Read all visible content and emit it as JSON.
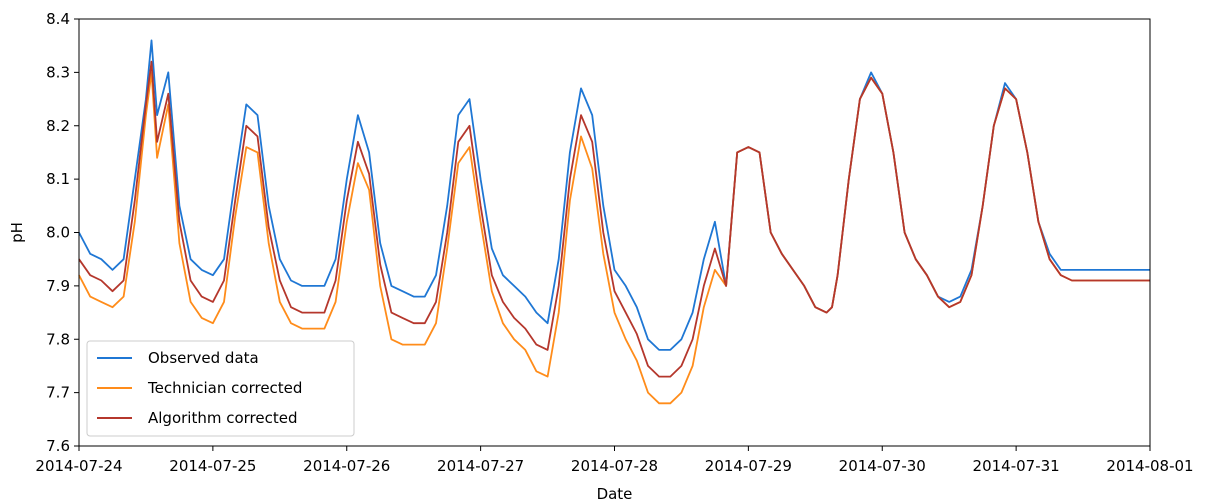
{
  "chart_data": {
    "type": "line",
    "title": "",
    "xlabel": "Date",
    "ylabel": "pH",
    "xlim": [
      "2014-07-24",
      "2014-08-01"
    ],
    "ylim": [
      7.6,
      8.4
    ],
    "grid": false,
    "legend_position": "lower-left",
    "x_ticks": [
      "2014-07-24",
      "2014-07-25",
      "2014-07-26",
      "2014-07-27",
      "2014-07-28",
      "2014-07-29",
      "2014-07-30",
      "2014-07-31",
      "2014-08-01"
    ],
    "y_ticks": [
      "7.6",
      "7.7",
      "7.8",
      "7.9",
      "8.0",
      "8.1",
      "8.2",
      "8.3",
      "8.4"
    ],
    "x": [
      "2014-07-24 00:00",
      "2014-07-24 02:00",
      "2014-07-24 04:00",
      "2014-07-24 06:00",
      "2014-07-24 08:00",
      "2014-07-24 10:00",
      "2014-07-24 12:00",
      "2014-07-24 13:00",
      "2014-07-24 14:00",
      "2014-07-24 16:00",
      "2014-07-24 18:00",
      "2014-07-24 20:00",
      "2014-07-24 22:00",
      "2014-07-25 00:00",
      "2014-07-25 02:00",
      "2014-07-25 04:00",
      "2014-07-25 06:00",
      "2014-07-25 08:00",
      "2014-07-25 10:00",
      "2014-07-25 12:00",
      "2014-07-25 14:00",
      "2014-07-25 16:00",
      "2014-07-25 18:00",
      "2014-07-25 20:00",
      "2014-07-25 22:00",
      "2014-07-26 00:00",
      "2014-07-26 02:00",
      "2014-07-26 04:00",
      "2014-07-26 06:00",
      "2014-07-26 08:00",
      "2014-07-26 10:00",
      "2014-07-26 12:00",
      "2014-07-26 14:00",
      "2014-07-26 16:00",
      "2014-07-26 18:00",
      "2014-07-26 20:00",
      "2014-07-26 22:00",
      "2014-07-27 00:00",
      "2014-07-27 02:00",
      "2014-07-27 04:00",
      "2014-07-27 06:00",
      "2014-07-27 08:00",
      "2014-07-27 10:00",
      "2014-07-27 12:00",
      "2014-07-27 14:00",
      "2014-07-27 16:00",
      "2014-07-27 18:00",
      "2014-07-27 20:00",
      "2014-07-27 22:00",
      "2014-07-28 00:00",
      "2014-07-28 02:00",
      "2014-07-28 04:00",
      "2014-07-28 06:00",
      "2014-07-28 08:00",
      "2014-07-28 10:00",
      "2014-07-28 12:00",
      "2014-07-28 14:00",
      "2014-07-28 16:00",
      "2014-07-28 18:00",
      "2014-07-28 20:00",
      "2014-07-28 22:00",
      "2014-07-29 00:00",
      "2014-07-29 02:00",
      "2014-07-29 04:00",
      "2014-07-29 06:00",
      "2014-07-29 08:00",
      "2014-07-29 10:00",
      "2014-07-29 12:00",
      "2014-07-29 14:00",
      "2014-07-29 15:00",
      "2014-07-29 16:00",
      "2014-07-29 18:00",
      "2014-07-29 20:00",
      "2014-07-29 22:00",
      "2014-07-30 00:00",
      "2014-07-30 02:00",
      "2014-07-30 04:00",
      "2014-07-30 06:00",
      "2014-07-30 08:00",
      "2014-07-30 10:00",
      "2014-07-30 12:00",
      "2014-07-30 14:00",
      "2014-07-30 16:00",
      "2014-07-30 18:00",
      "2014-07-30 20:00",
      "2014-07-30 22:00",
      "2014-07-31 00:00",
      "2014-07-31 02:00",
      "2014-07-31 04:00",
      "2014-07-31 06:00",
      "2014-07-31 08:00",
      "2014-07-31 10:00",
      "2014-07-31 12:00",
      "2014-07-31 14:00",
      "2014-07-31 16:00",
      "2014-07-31 18:00",
      "2014-07-31 20:00",
      "2014-07-31 22:00",
      "2014-08-01 00:00"
    ],
    "series": [
      {
        "name": "Observed data",
        "color": "#1f77d4",
        "values": [
          8.0,
          7.96,
          7.95,
          7.93,
          7.95,
          8.1,
          8.25,
          8.36,
          8.22,
          8.3,
          8.05,
          7.95,
          7.93,
          7.92,
          7.95,
          8.1,
          8.24,
          8.22,
          8.05,
          7.95,
          7.91,
          7.9,
          7.9,
          7.9,
          7.95,
          8.1,
          8.22,
          8.15,
          7.98,
          7.9,
          7.89,
          7.88,
          7.88,
          7.92,
          8.05,
          8.22,
          8.25,
          8.1,
          7.97,
          7.92,
          7.9,
          7.88,
          7.85,
          7.83,
          7.95,
          8.15,
          8.27,
          8.22,
          8.05,
          7.93,
          7.9,
          7.86,
          7.8,
          7.78,
          7.78,
          7.8,
          7.85,
          7.95,
          8.02,
          7.9,
          8.15,
          8.16,
          8.15,
          8.0,
          7.96,
          7.93,
          7.9,
          7.86,
          7.85,
          7.86,
          7.92,
          8.1,
          8.25,
          8.3,
          8.26,
          8.15,
          8.0,
          7.95,
          7.92,
          7.88,
          7.87,
          7.88,
          7.93,
          8.05,
          8.2,
          8.28,
          8.25,
          8.15,
          8.02,
          7.96,
          7.93,
          7.93,
          7.93,
          7.93,
          7.93,
          7.93,
          7.93,
          7.93,
          7.93
        ]
      },
      {
        "name": "Technician corrected",
        "color": "#ff8c1a",
        "values": [
          7.92,
          7.88,
          7.87,
          7.86,
          7.88,
          8.02,
          8.22,
          8.3,
          8.14,
          8.24,
          7.98,
          7.87,
          7.84,
          7.83,
          7.87,
          8.03,
          8.16,
          8.15,
          7.98,
          7.87,
          7.83,
          7.82,
          7.82,
          7.82,
          7.87,
          8.02,
          8.13,
          8.08,
          7.9,
          7.8,
          7.79,
          7.79,
          7.79,
          7.83,
          7.97,
          8.13,
          8.16,
          8.02,
          7.89,
          7.83,
          7.8,
          7.78,
          7.74,
          7.73,
          7.85,
          8.06,
          8.18,
          8.12,
          7.96,
          7.85,
          7.8,
          7.76,
          7.7,
          7.68,
          7.68,
          7.7,
          7.75,
          7.86,
          7.93,
          7.9,
          8.15,
          8.16,
          8.15,
          8.0,
          7.96,
          7.93,
          7.9,
          7.86,
          7.85,
          7.86,
          7.92,
          8.1,
          8.25,
          8.29,
          8.26,
          8.15,
          8.0,
          7.95,
          7.92,
          7.88,
          7.86,
          7.87,
          7.92,
          8.05,
          8.2,
          8.27,
          8.25,
          8.15,
          8.02,
          7.95,
          7.92,
          7.91,
          7.91,
          7.91,
          7.91,
          7.91,
          7.91,
          7.91,
          7.91
        ]
      },
      {
        "name": "Algorithm corrected",
        "color": "#b5372c",
        "values": [
          7.95,
          7.92,
          7.91,
          7.89,
          7.91,
          8.06,
          8.24,
          8.32,
          8.17,
          8.26,
          8.02,
          7.91,
          7.88,
          7.87,
          7.91,
          8.06,
          8.2,
          8.18,
          8.01,
          7.91,
          7.86,
          7.85,
          7.85,
          7.85,
          7.91,
          8.06,
          8.17,
          8.11,
          7.94,
          7.85,
          7.84,
          7.83,
          7.83,
          7.87,
          8.0,
          8.17,
          8.2,
          8.05,
          7.92,
          7.87,
          7.84,
          7.82,
          7.79,
          7.78,
          7.9,
          8.1,
          8.22,
          8.17,
          8.0,
          7.89,
          7.85,
          7.81,
          7.75,
          7.73,
          7.73,
          7.75,
          7.8,
          7.9,
          7.97,
          7.9,
          8.15,
          8.16,
          8.15,
          8.0,
          7.96,
          7.93,
          7.9,
          7.86,
          7.85,
          7.86,
          7.92,
          8.1,
          8.25,
          8.29,
          8.26,
          8.15,
          8.0,
          7.95,
          7.92,
          7.88,
          7.86,
          7.87,
          7.92,
          8.05,
          8.2,
          8.27,
          8.25,
          8.15,
          8.02,
          7.95,
          7.92,
          7.91,
          7.91,
          7.91,
          7.91,
          7.91,
          7.91,
          7.91,
          7.91
        ]
      }
    ]
  }
}
